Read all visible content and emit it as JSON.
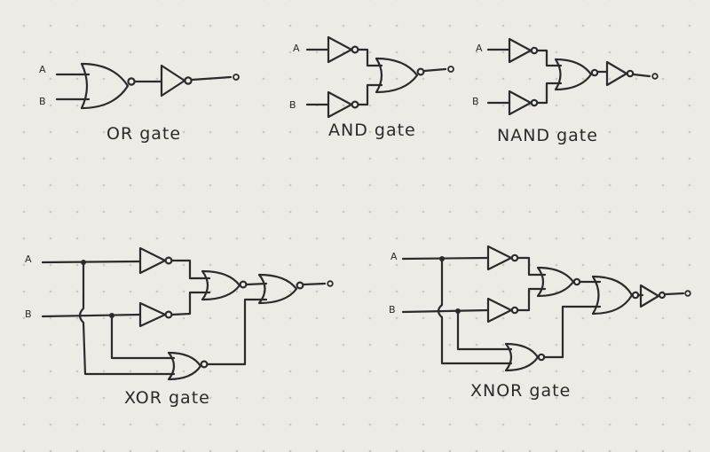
{
  "circuits": {
    "or": {
      "caption": "OR gate",
      "input_a": "A",
      "input_b": "B"
    },
    "and": {
      "caption": "AND gate",
      "input_a": "A",
      "input_b": "B"
    },
    "nand": {
      "caption": "NAND gate",
      "input_a": "A",
      "input_b": "B"
    },
    "xor": {
      "caption": "XOR gate",
      "input_a": "A",
      "input_b": "B"
    },
    "xnor": {
      "caption": "XNOR gate",
      "input_a": "A",
      "input_b": "B"
    }
  },
  "colors": {
    "ink": "#2b2b2b",
    "paper": "#ecebe6",
    "dots": "#c8c7c1"
  }
}
